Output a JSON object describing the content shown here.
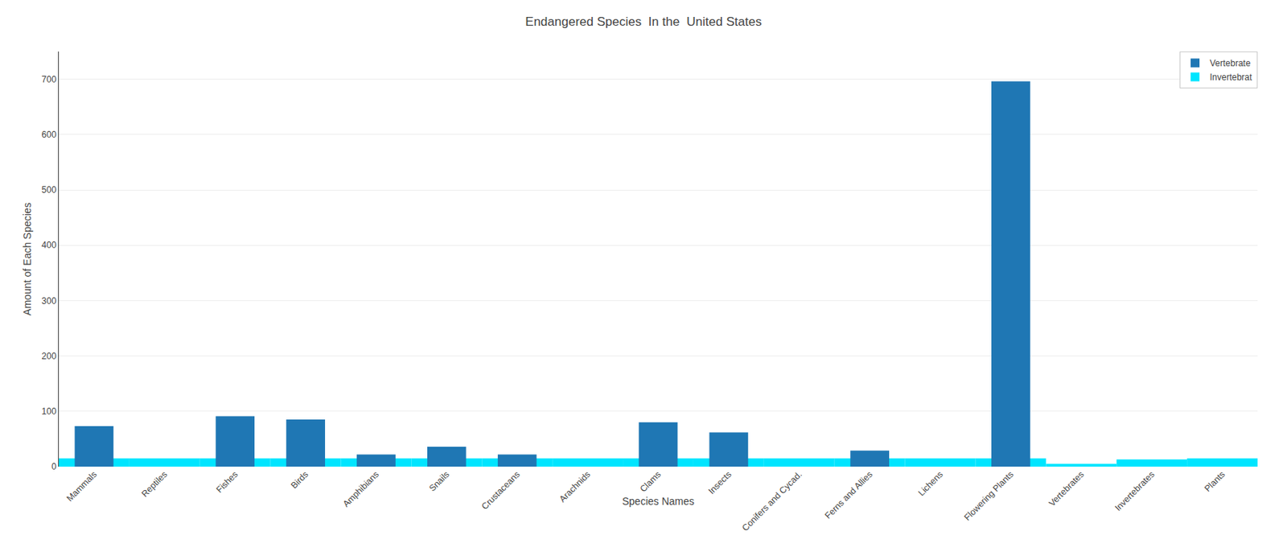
{
  "chart_data": {
    "type": "bar",
    "title": "Endangered Species  In the  United States",
    "xlabel": "Species Names",
    "ylabel": "Amount of Each Species",
    "categories": [
      "Mammals",
      "Reptiles",
      "Fishes",
      "Birds",
      "Amphibians",
      "Snails",
      "Crustaceans",
      "Arachnids",
      "Clams",
      "Insects",
      "Conifers and Cycad.",
      "Ferns and Allies",
      "Lichens",
      "Flowering Plants",
      "Vertebrates",
      "Invertebrates",
      "Plants"
    ],
    "series": [
      {
        "name": "Vertebrate",
        "color": "#1f77b4",
        "values": [
          73,
          0,
          91,
          85,
          22,
          36,
          22,
          0,
          80,
          62,
          0,
          29,
          0,
          696,
          0,
          0,
          0
        ]
      },
      {
        "name": "Invertebrat",
        "color": "#00e5ff",
        "values": [
          15,
          15,
          15,
          15,
          15,
          15,
          15,
          15,
          15,
          15,
          15,
          15,
          15,
          15,
          5,
          13,
          15
        ]
      }
    ],
    "ylim": [
      0,
      750
    ],
    "yticks": [
      0,
      100,
      200,
      300,
      400,
      500,
      600,
      700
    ],
    "grid": true,
    "legend": "upper right"
  }
}
